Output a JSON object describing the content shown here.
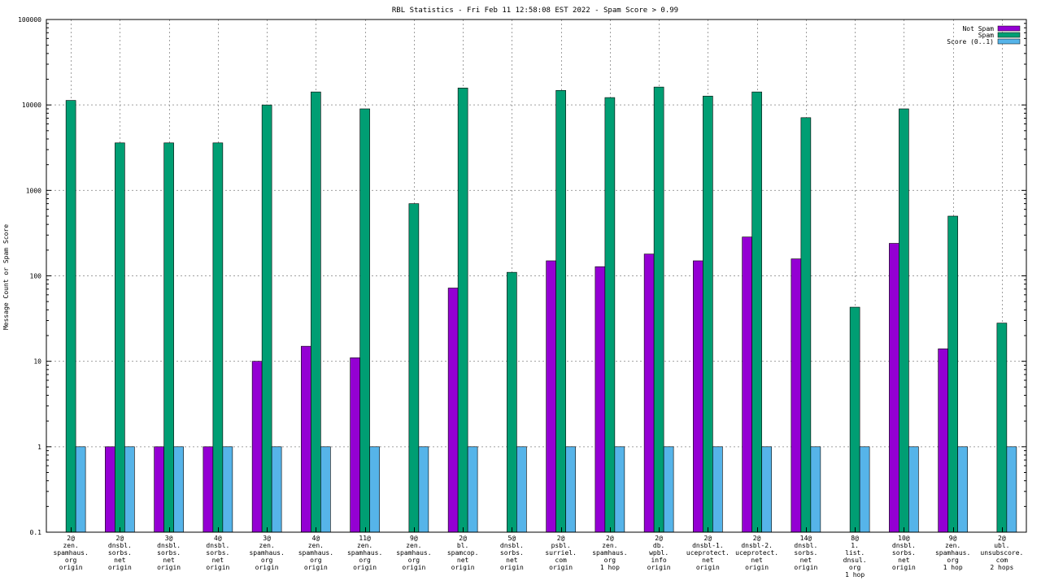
{
  "chart_data": {
    "type": "bar",
    "title": "RBL Statistics - Fri Feb 11 12:58:08 EST 2022 - Spam Score > 0.99",
    "xlabel": "",
    "ylabel": "Message Count or Spam Score",
    "yscale": "log",
    "ylim": [
      0.1,
      100000
    ],
    "yticks": [
      "0.1",
      "1",
      "10",
      "100",
      "1000",
      "10000",
      "100000"
    ],
    "grid": true,
    "legend_position": "top-right",
    "categories": [
      [
        "2@",
        "zen.",
        "spamhaus.",
        "org",
        "origin"
      ],
      [
        "2@",
        "dnsbl.",
        "sorbs.",
        "net",
        "origin"
      ],
      [
        "3@",
        "dnsbl.",
        "sorbs.",
        "net",
        "origin"
      ],
      [
        "4@",
        "dnsbl.",
        "sorbs.",
        "net",
        "origin"
      ],
      [
        "3@",
        "zen.",
        "spamhaus.",
        "org",
        "origin"
      ],
      [
        "4@",
        "zen.",
        "spamhaus.",
        "org",
        "origin"
      ],
      [
        "11@",
        "zen.",
        "spamhaus.",
        "org",
        "origin"
      ],
      [
        "9@",
        "zen.",
        "spamhaus.",
        "org",
        "origin"
      ],
      [
        "2@",
        "bl.",
        "spamcop.",
        "net",
        "origin"
      ],
      [
        "5@",
        "dnsbl.",
        "sorbs.",
        "net",
        "origin"
      ],
      [
        "2@",
        "psbl.",
        "surriel.",
        "com",
        "origin"
      ],
      [
        "2@",
        "zen.",
        "spamhaus.",
        "org",
        "1 hop"
      ],
      [
        "2@",
        "db.",
        "wpbl.",
        "info",
        "origin"
      ],
      [
        "2@",
        "dnsbl-1.",
        "uceprotect.",
        "net",
        "origin"
      ],
      [
        "2@",
        "dnsbl-2.",
        "uceprotect.",
        "net",
        "origin"
      ],
      [
        "14@",
        "dnsbl.",
        "sorbs.",
        "net",
        "origin"
      ],
      [
        "8@",
        "1.",
        "list.",
        "dnsul.",
        "org",
        "1 hop"
      ],
      [
        "10@",
        "dnsbl.",
        "sorbs.",
        "net",
        "origin"
      ],
      [
        "9@",
        "zen.",
        "spamhaus.",
        "org",
        "1 hop"
      ],
      [
        "2@",
        "ubl.",
        "unsubscore.",
        "com",
        "2 hops"
      ]
    ],
    "series": [
      {
        "name": "Not Spam",
        "color": "#9400d3",
        "values": [
          null,
          1,
          1,
          1,
          10,
          15,
          11,
          null,
          72,
          null,
          150,
          128,
          180,
          150,
          285,
          158,
          null,
          240,
          14,
          null
        ]
      },
      {
        "name": "Spam",
        "color": "#009e73",
        "values": [
          11300,
          3600,
          3600,
          3600,
          10000,
          14200,
          9000,
          700,
          15800,
          110,
          14800,
          12200,
          16200,
          12700,
          14200,
          7100,
          43,
          9000,
          500,
          28
        ]
      },
      {
        "name": "Score (0..1)",
        "color": "#56b4e9",
        "values": [
          1,
          1,
          1,
          1,
          1,
          1,
          1,
          1,
          1,
          1,
          1,
          1,
          1,
          1,
          1,
          1,
          1,
          1,
          1,
          1
        ]
      }
    ]
  }
}
